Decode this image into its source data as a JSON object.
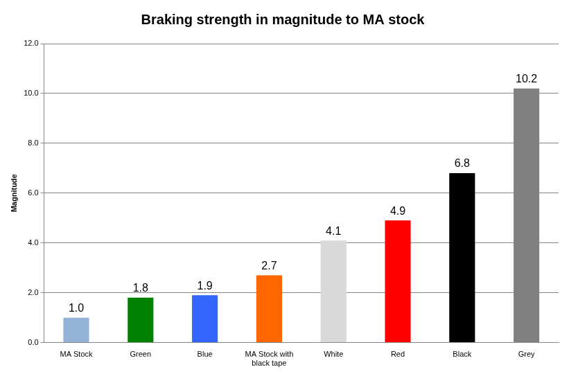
{
  "chart_data": {
    "type": "bar",
    "title": "Braking strength in magnitude to MA stock",
    "y_label": "Magnitude",
    "categories": [
      "MA Stock",
      "Green",
      "Blue",
      "MA Stock with black tape",
      "White",
      "Red",
      "Black",
      "Grey"
    ],
    "values": [
      1.0,
      1.8,
      1.9,
      2.7,
      4.1,
      4.9,
      6.8,
      10.2
    ],
    "value_labels": [
      "1.0",
      "1.8",
      "1.9",
      "2.7",
      "4.1",
      "4.9",
      "6.8",
      "10.2"
    ],
    "colors": [
      "#95b3d7",
      "#008000",
      "#3366ff",
      "#ff6600",
      "#d9d9d9",
      "#ff0000",
      "#000000",
      "#808080"
    ],
    "ylim": [
      0,
      12
    ],
    "yticks": [
      {
        "value": 0,
        "label": "0.0"
      },
      {
        "value": 2,
        "label": "2.0"
      },
      {
        "value": 4,
        "label": "4.0"
      },
      {
        "value": 6,
        "label": "6.0"
      },
      {
        "value": 8,
        "label": "8.0"
      },
      {
        "value": 10,
        "label": "10.0"
      },
      {
        "value": 12,
        "label": "12.0"
      }
    ],
    "grid": true,
    "data_labels": true
  }
}
